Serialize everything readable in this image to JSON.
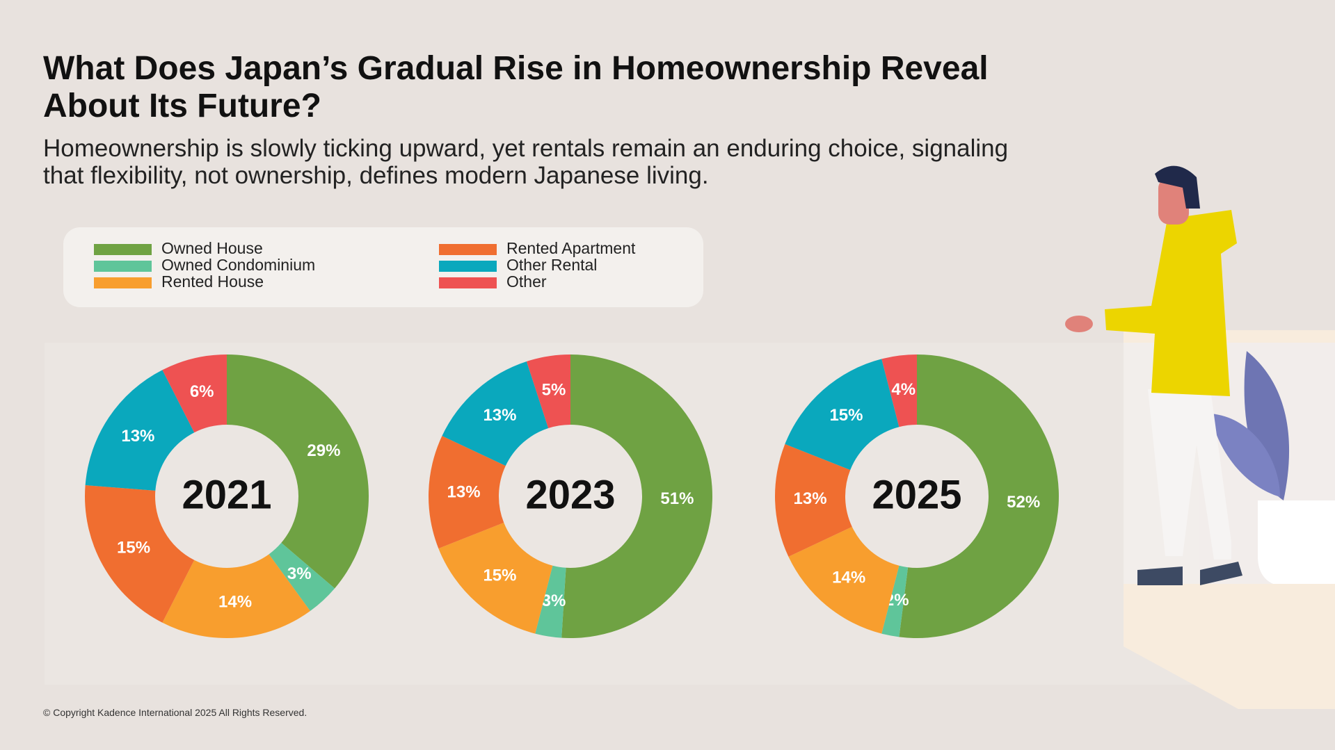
{
  "title": "What Does Japan’s Gradual Rise in Homeownership Reveal About Its Future?",
  "subtitle": "Homeownership is slowly ticking upward, yet rentals remain an enduring choice, signaling that flexibility, not ownership, defines modern Japanese living.",
  "legend": {
    "categories": [
      "Owned House",
      "Owned Condominium",
      "Rented House",
      "Rented Apartment",
      "Other Rental",
      "Other"
    ],
    "colors": [
      "#6fa243",
      "#5fc59a",
      "#f89e2e",
      "#f06e30",
      "#0aa8bd",
      "#ee5252"
    ]
  },
  "chart_data": [
    {
      "type": "pie",
      "title": "2021",
      "values": [
        29,
        3,
        14,
        15,
        13,
        6
      ],
      "value_labels": [
        "29%",
        "3%",
        "14%",
        "15%",
        "13%",
        "6%"
      ]
    },
    {
      "type": "pie",
      "title": "2023",
      "values": [
        51,
        3,
        15,
        13,
        13,
        5
      ],
      "value_labels": [
        "51%",
        "3%",
        "15%",
        "13%",
        "13%",
        "5%"
      ]
    },
    {
      "type": "pie",
      "title": "2025",
      "values": [
        52,
        2,
        14,
        13,
        15,
        4
      ],
      "value_labels": [
        "52%",
        "2%",
        "14%",
        "13%",
        "15%",
        "4%"
      ]
    }
  ],
  "copyright": "© Copyright Kadence International 2025 All Rights Reserved."
}
